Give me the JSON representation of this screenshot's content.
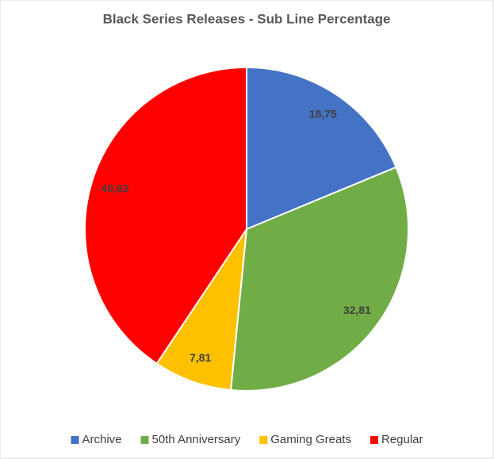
{
  "chart_data": {
    "type": "pie",
    "title": "Black Series Releases - Sub Line Percentage",
    "categories": [
      "Archive",
      "50th Anniversary",
      "Gaming Greats",
      "Regular"
    ],
    "values": [
      18.75,
      32.81,
      7.81,
      40.63
    ],
    "value_labels": [
      "18,75",
      "32,81",
      "7,81",
      "40,63"
    ],
    "colors": [
      "#4472c4",
      "#70ad47",
      "#ffc000",
      "#ff0000"
    ],
    "legend": "bottom"
  }
}
